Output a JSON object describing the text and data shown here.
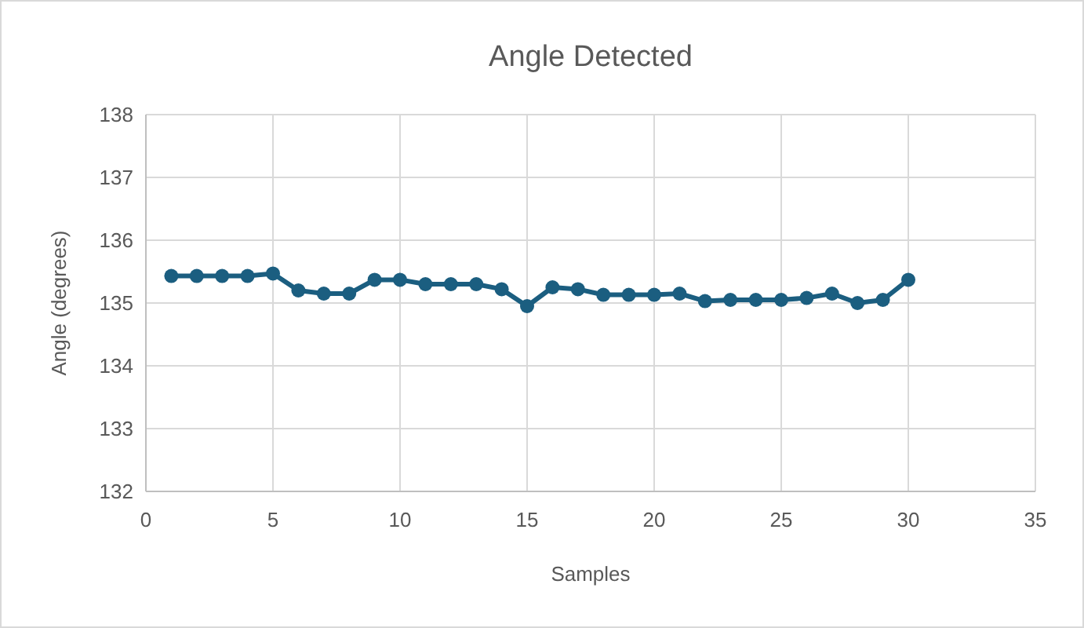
{
  "chart_data": {
    "type": "line",
    "title": "Angle Detected",
    "xlabel": "Samples",
    "ylabel": "Angle (degrees)",
    "x": [
      1,
      2,
      3,
      4,
      5,
      6,
      7,
      8,
      9,
      10,
      11,
      12,
      13,
      14,
      15,
      16,
      17,
      18,
      19,
      20,
      21,
      22,
      23,
      24,
      25,
      26,
      27,
      28,
      29,
      30
    ],
    "series": [
      {
        "color": "#1b5e80",
        "values": [
          135.43,
          135.43,
          135.43,
          135.43,
          135.47,
          135.2,
          135.15,
          135.15,
          135.37,
          135.37,
          135.3,
          135.3,
          135.3,
          135.22,
          134.95,
          135.25,
          135.22,
          135.13,
          135.13,
          135.13,
          135.15,
          135.03,
          135.05,
          135.05,
          135.05,
          135.08,
          135.15,
          135.0,
          135.05,
          135.37
        ]
      }
    ],
    "xlim": [
      0,
      35
    ],
    "xticks": [
      0,
      5,
      10,
      15,
      20,
      25,
      30,
      35
    ],
    "ylim": [
      132,
      138
    ],
    "yticks": [
      132,
      133,
      134,
      135,
      136,
      137,
      138
    ],
    "grid": true,
    "marker": "circle",
    "line_style": "solid"
  }
}
